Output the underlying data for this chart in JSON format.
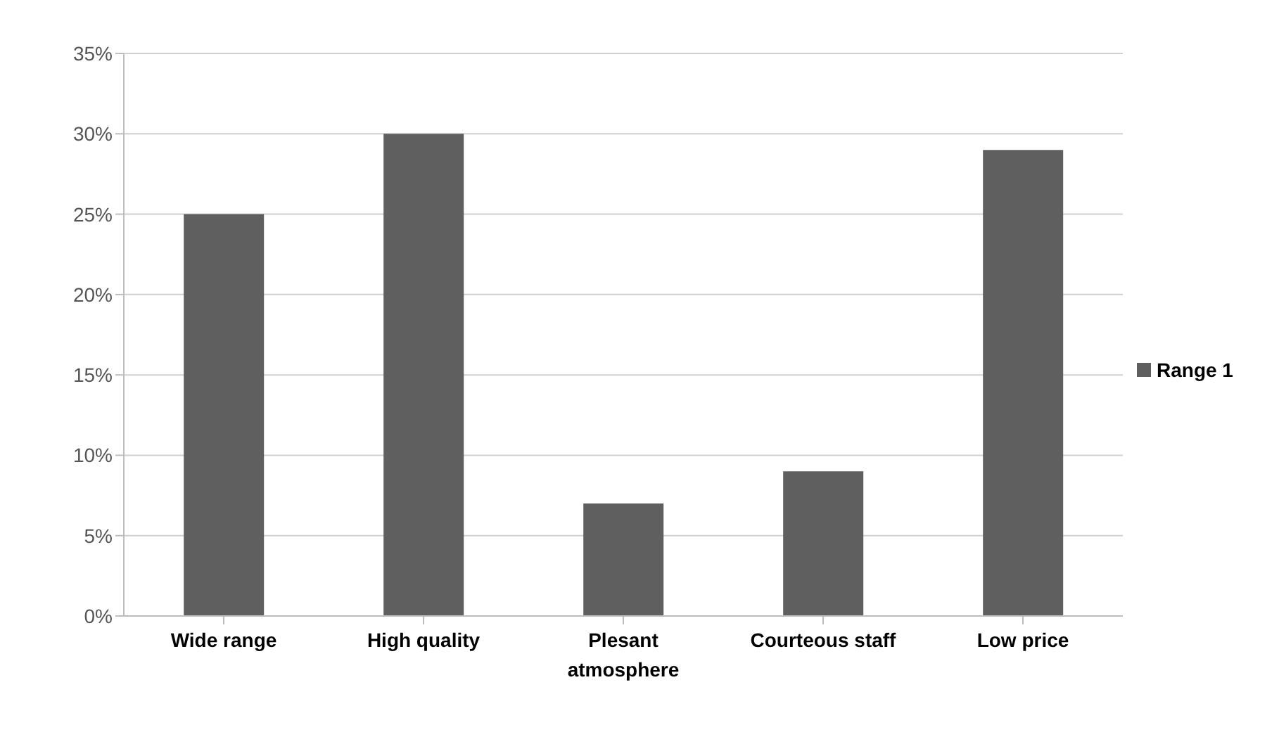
{
  "chart_data": {
    "type": "bar",
    "categories": [
      "Wide range",
      "High quality",
      "Plesant atmosphere",
      "Courteous staff",
      "Low price"
    ],
    "series": [
      {
        "name": "Range 1",
        "color": "#5f5f5f",
        "values": [
          25,
          30,
          7,
          9,
          29
        ]
      }
    ],
    "ylim": [
      0,
      35
    ],
    "yticks": [
      {
        "value": 0,
        "label": "0%"
      },
      {
        "value": 5,
        "label": "5%"
      },
      {
        "value": 10,
        "label": "10%"
      },
      {
        "value": 15,
        "label": "15%"
      },
      {
        "value": 20,
        "label": "20%"
      },
      {
        "value": 25,
        "label": "25%"
      },
      {
        "value": 30,
        "label": "30%"
      },
      {
        "value": 35,
        "label": "35%"
      }
    ],
    "grid": "y",
    "legend": "right"
  }
}
